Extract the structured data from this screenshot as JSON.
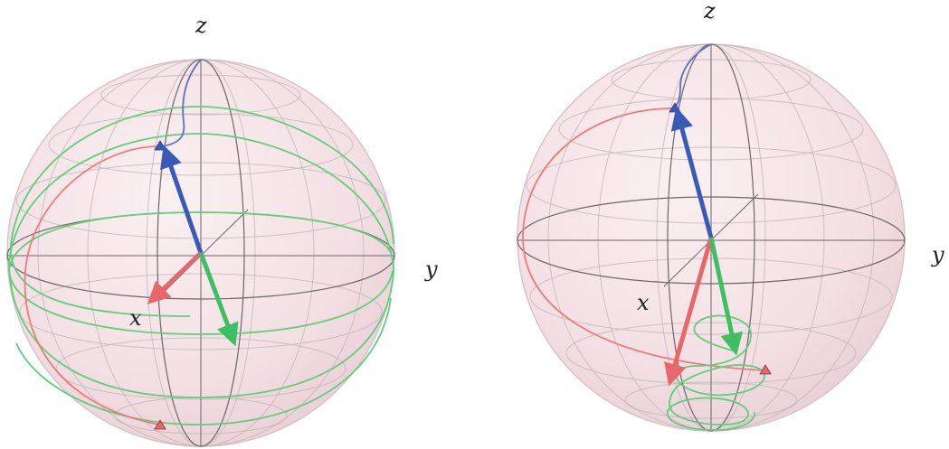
{
  "figure": {
    "panels": [
      {
        "id": "left",
        "axis_labels": {
          "x": "x",
          "y": "y",
          "z": "z"
        },
        "vectors": [
          {
            "name": "blue",
            "color": "#3a5bb5"
          },
          {
            "name": "red",
            "color": "#e8676b"
          },
          {
            "name": "green",
            "color": "#3fbf63"
          }
        ],
        "trajectories": [
          {
            "name": "blue-path",
            "color": "#5a6fd0"
          },
          {
            "name": "red-path",
            "color": "#f0797c"
          },
          {
            "name": "green-path",
            "color": "#5fcf7a"
          }
        ]
      },
      {
        "id": "right",
        "axis_labels": {
          "x": "x",
          "y": "y",
          "z": "z"
        },
        "vectors": [
          {
            "name": "blue",
            "color": "#3a5bb5"
          },
          {
            "name": "red",
            "color": "#e8676b"
          },
          {
            "name": "green",
            "color": "#3fbf63"
          }
        ],
        "trajectories": [
          {
            "name": "blue-path",
            "color": "#5a6fd0"
          },
          {
            "name": "red-path",
            "color": "#f0797c"
          },
          {
            "name": "green-path",
            "color": "#5fcf7a"
          }
        ]
      }
    ],
    "colors": {
      "sphere_fill": "#f3dfe4",
      "sphere_edge": "#d9c3c9",
      "grid": "#bfb3b6",
      "axis": "#6d6669"
    }
  }
}
